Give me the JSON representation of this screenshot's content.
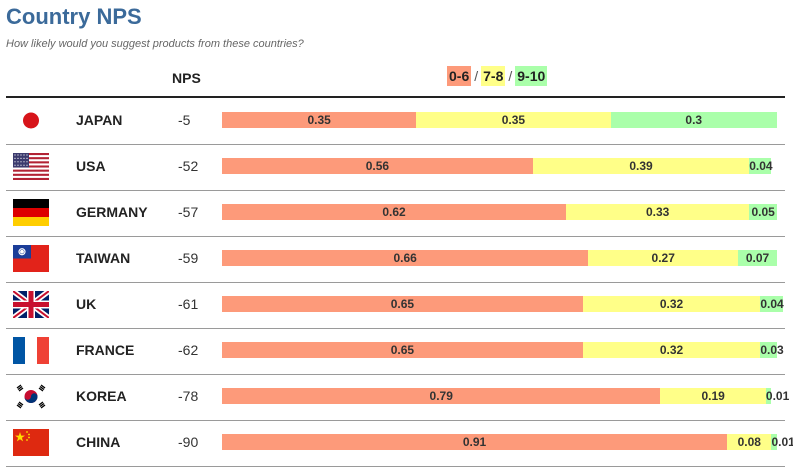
{
  "header": {
    "title": "Country NPS",
    "subtitle": "How likely would you suggest products from these countries?",
    "nps_label": "NPS",
    "legend": {
      "detractors": "0-6",
      "passives": "7-8",
      "promoters": "9-10",
      "separator": "/"
    }
  },
  "colors": {
    "detractors": "#fd9a7a",
    "passives": "#ffff88",
    "promoters": "#aaffaa",
    "title": "#3b6a9a"
  },
  "chart_data": {
    "type": "bar",
    "stacked": true,
    "orientation": "horizontal",
    "title": "Country NPS",
    "subtitle": "How likely would you suggest products from these countries?",
    "categories": [
      "JAPAN",
      "USA",
      "GERMANY",
      "TAIWAN",
      "UK",
      "FRANCE",
      "KOREA",
      "CHINA"
    ],
    "nps": [
      -5,
      -52,
      -57,
      -59,
      -61,
      -62,
      -78,
      -90
    ],
    "series": [
      {
        "name": "0-6",
        "values": [
          0.35,
          0.56,
          0.62,
          0.66,
          0.65,
          0.65,
          0.79,
          0.91
        ],
        "labels": [
          "0.35",
          "0.56",
          "0.62",
          "0.66",
          "0.65",
          "0.65",
          "0.79",
          "0.91"
        ]
      },
      {
        "name": "7-8",
        "values": [
          0.35,
          0.39,
          0.33,
          0.27,
          0.32,
          0.32,
          0.19,
          0.08
        ],
        "labels": [
          "0.35",
          "0.39",
          "0.33",
          "0.27",
          "0.32",
          "0.32",
          "0.19",
          "0.08"
        ]
      },
      {
        "name": "9-10",
        "values": [
          0.3,
          0.04,
          0.05,
          0.07,
          0.04,
          0.03,
          0.01,
          0.01
        ],
        "labels": [
          "0.3",
          "0.04",
          "0.05",
          "0.07",
          "0.04",
          "0.03",
          "0.01",
          "0.01"
        ]
      }
    ],
    "xlim": [
      0,
      1
    ]
  },
  "rows": [
    {
      "country": "JAPAN",
      "nps": "-5",
      "flag_icon": "japan-flag-icon"
    },
    {
      "country": "USA",
      "nps": "-52",
      "flag_icon": "usa-flag-icon"
    },
    {
      "country": "GERMANY",
      "nps": "-57",
      "flag_icon": "germany-flag-icon"
    },
    {
      "country": "TAIWAN",
      "nps": "-59",
      "flag_icon": "taiwan-flag-icon"
    },
    {
      "country": "UK",
      "nps": "-61",
      "flag_icon": "uk-flag-icon"
    },
    {
      "country": "FRANCE",
      "nps": "-62",
      "flag_icon": "france-flag-icon"
    },
    {
      "country": "KOREA",
      "nps": "-78",
      "flag_icon": "korea-flag-icon"
    },
    {
      "country": "CHINA",
      "nps": "-90",
      "flag_icon": "china-flag-icon"
    }
  ]
}
